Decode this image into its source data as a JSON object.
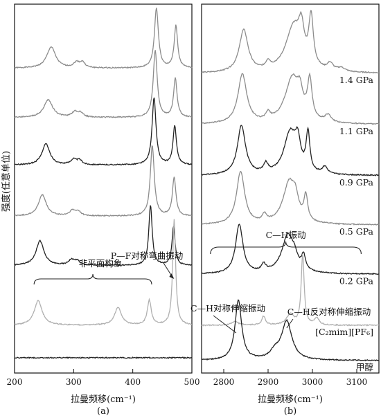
{
  "ylabel": "强度(任意单位)",
  "chart_data": [
    {
      "type": "line",
      "panel_label": "(a)",
      "xlabel": "拉曼频移(cm⁻¹)",
      "xlim": [
        200,
        500
      ],
      "xticks": [
        200,
        300,
        400,
        500
      ],
      "grid": false,
      "colors": {
        "dark": "#222222",
        "gray": "#8c8c8c",
        "light": "#b0b0b0"
      },
      "annotations": [
        {
          "text": "非平面构象",
          "target": "bands at ~240, ~375, ~428 cm⁻¹"
        },
        {
          "text": "P—F对称弯曲振动",
          "target": "band at ~470 cm⁻¹"
        }
      ],
      "series": [
        {
          "style": "gray",
          "baseline": 0.83,
          "peaks": [
            [
              262,
              0.06,
              9
            ],
            [
              305,
              0.015,
              6
            ],
            [
              315,
              0.015,
              5
            ],
            [
              440,
              0.17,
              4
            ],
            [
              473,
              0.12,
              3.5
            ]
          ]
        },
        {
          "style": "gray",
          "baseline": 0.69,
          "peaks": [
            [
              257,
              0.05,
              9
            ],
            [
              302,
              0.015,
              6
            ],
            [
              312,
              0.012,
              5
            ],
            [
              438,
              0.19,
              4
            ],
            [
              472,
              0.11,
              3.5
            ]
          ]
        },
        {
          "style": "dark",
          "baseline": 0.555,
          "peaks": [
            [
              253,
              0.06,
              8
            ],
            [
              300,
              0.015,
              6
            ],
            [
              310,
              0.012,
              5
            ],
            [
              436,
              0.19,
              4
            ],
            [
              471,
              0.11,
              3.5
            ]
          ]
        },
        {
          "style": "gray",
          "baseline": 0.41,
          "peaks": [
            [
              247,
              0.06,
              8
            ],
            [
              298,
              0.015,
              6
            ],
            [
              308,
              0.012,
              5
            ],
            [
              433,
              0.2,
              4
            ],
            [
              470,
              0.11,
              3.5
            ]
          ]
        },
        {
          "style": "dark",
          "baseline": 0.27,
          "peaks": [
            [
              243,
              0.07,
              8
            ],
            [
              296,
              0.015,
              6
            ],
            [
              306,
              0.012,
              5
            ],
            [
              430,
              0.17,
              3.5
            ],
            [
              469,
              0.11,
              3.2
            ]
          ]
        },
        {
          "style": "light",
          "baseline": 0.1,
          "peaks": [
            [
              240,
              0.07,
              8
            ],
            [
              375,
              0.05,
              7
            ],
            [
              428,
              0.07,
              4
            ],
            [
              470,
              0.3,
              3
            ]
          ]
        },
        {
          "style": "dark",
          "baseline": 0.008,
          "peaks": []
        }
      ]
    },
    {
      "type": "line",
      "panel_label": "(b)",
      "xlabel": "拉曼频移(cm⁻¹)",
      "xlim": [
        2750,
        3150
      ],
      "xticks": [
        2800,
        2900,
        3000,
        3100
      ],
      "grid": false,
      "annotations": [
        {
          "text": "C—H振动",
          "target": "bracket over 2770–3110 cm⁻¹"
        },
        {
          "text": "C—H对称伸缩振动",
          "target": "methanol band at ~2833 cm⁻¹"
        },
        {
          "text": "C—H反对称伸缩振动",
          "target": "methanol band at ~2942 cm⁻¹"
        }
      ],
      "series": [
        {
          "label": "1.4 GPa",
          "style": "gray",
          "baseline": 0.815,
          "peaks": [
            [
              2845,
              0.12,
              12
            ],
            [
              2900,
              0.02,
              6
            ],
            [
              2958,
              0.13,
              22
            ],
            [
              2975,
              0.08,
              7
            ],
            [
              2997,
              0.14,
              6
            ],
            [
              3040,
              0.02,
              8
            ],
            [
              3065,
              0.01,
              10
            ]
          ]
        },
        {
          "label": "1.1 GPa",
          "style": "gray",
          "baseline": 0.67,
          "peaks": [
            [
              2842,
              0.14,
              12
            ],
            [
              2900,
              0.02,
              6
            ],
            [
              2955,
              0.13,
              20
            ],
            [
              2972,
              0.05,
              7
            ],
            [
              2994,
              0.11,
              6
            ],
            [
              3035,
              0.02,
              8
            ]
          ]
        },
        {
          "label": "0.9 GPa",
          "style": "dark",
          "baseline": 0.525,
          "peaks": [
            [
              2840,
              0.14,
              11
            ],
            [
              2895,
              0.025,
              6
            ],
            [
              2950,
              0.12,
              17
            ],
            [
              2967,
              0.07,
              7
            ],
            [
              2990,
              0.11,
              5
            ],
            [
              3028,
              0.02,
              7
            ]
          ]
        },
        {
          "label": "0.5 GPa",
          "style": "gray",
          "baseline": 0.385,
          "peaks": [
            [
              2838,
              0.15,
              11
            ],
            [
              2892,
              0.02,
              6
            ],
            [
              2948,
              0.12,
              17
            ],
            [
              2962,
              0.04,
              7
            ],
            [
              2985,
              0.07,
              5
            ]
          ]
        },
        {
          "label": "0.2 GPa",
          "style": "dark",
          "baseline": 0.245,
          "peaks": [
            [
              2835,
              0.14,
              10
            ],
            [
              2890,
              0.02,
              6
            ],
            [
              2945,
              0.11,
              17
            ],
            [
              2960,
              0.02,
              7
            ],
            [
              2980,
              0.04,
              5
            ]
          ]
        },
        {
          "label": "[C₂mim][PF₆]",
          "style": "light",
          "baseline": 0.1,
          "peaks": [
            [
              2825,
              0.01,
              10
            ],
            [
              2890,
              0.025,
              5
            ],
            [
              2950,
              0.03,
              10
            ],
            [
              2978,
              0.2,
              4
            ],
            [
              3010,
              0.02,
              6
            ]
          ]
        },
        {
          "label": "甲醇",
          "style": "dark",
          "baseline": 0.0,
          "peaks": [
            [
              2833,
              0.17,
              9
            ],
            [
              2942,
              0.11,
              14
            ],
            [
              2915,
              0.02,
              12
            ]
          ]
        }
      ]
    }
  ]
}
